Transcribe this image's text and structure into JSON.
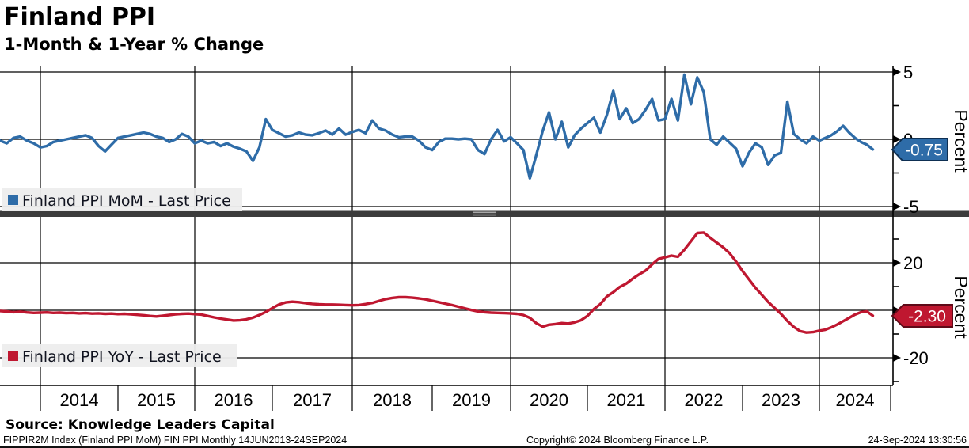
{
  "header": {
    "title": "Finland PPI",
    "subtitle": "1-Month & 1-Year % Change"
  },
  "panel_top": {
    "legend_label": "Finland PPI MoM - Last Price",
    "axis_title": "Percent",
    "last_price": "-0.75",
    "tick_labels": [
      "5",
      "0",
      "-5"
    ]
  },
  "panel_bottom": {
    "legend_label": "Finland PPI YoY - Last Price",
    "axis_title": "Percent",
    "last_price": "-2.30",
    "tick_labels": [
      "20",
      "0",
      "-20"
    ]
  },
  "x_axis": {
    "year_labels": [
      "2014",
      "2015",
      "2016",
      "2017",
      "2018",
      "2019",
      "2020",
      "2021",
      "2022",
      "2023",
      "2024"
    ]
  },
  "footer": {
    "source": "Source: Knowledge Leaders Capital",
    "ticker_info": "FIPPIR2M Index (Finland PPI MoM) FIN PPI  Monthly 14JUN2013-24SEP2024",
    "copyright": "Copyright© 2024 Bloomberg Finance L.P.",
    "timestamp": "24-Sep-2024 13:30:56"
  },
  "colors": {
    "mom_blue": "#2e6ca8",
    "yoy_red": "#bf1730",
    "badge_blue_border": "#0e2f52",
    "badge_red_border": "#5f0a18",
    "grid": "#000000",
    "separator": "#3c3c3c",
    "separator_handle": "#a8a8a8",
    "legend_bg": "#ededed",
    "legend_text": "#10131f"
  },
  "chart_data": [
    {
      "type": "line",
      "name": "Finland PPI MoM - Last Price",
      "color": "#2e6ca8",
      "frequency": "monthly",
      "start": "2013-06",
      "end": "2024-09",
      "ylabel": "Percent",
      "yticks": [
        5,
        0,
        -5
      ],
      "ylim": [
        -5.5,
        5.5
      ],
      "last_price": -0.75,
      "values": [
        -0.1,
        -0.3,
        0.1,
        0.2,
        -0.1,
        -0.3,
        -0.6,
        -0.5,
        -0.2,
        -0.1,
        0.0,
        0.1,
        0.2,
        0.3,
        0.1,
        -0.5,
        -0.9,
        -0.4,
        0.1,
        0.2,
        0.3,
        0.4,
        0.5,
        0.4,
        0.2,
        0.1,
        -0.2,
        0.0,
        0.4,
        0.2,
        -0.3,
        -0.1,
        -0.3,
        -0.2,
        -0.5,
        -0.3,
        -0.55,
        -0.7,
        -0.9,
        -1.6,
        -0.6,
        1.5,
        0.7,
        0.45,
        0.2,
        0.3,
        0.5,
        0.35,
        0.3,
        0.45,
        0.65,
        0.35,
        0.8,
        0.35,
        0.55,
        0.7,
        0.45,
        1.4,
        0.8,
        0.65,
        0.35,
        0.15,
        0.2,
        0.2,
        -0.1,
        -0.6,
        -0.8,
        -0.2,
        0.05,
        0.05,
        0.0,
        0.05,
        0.0,
        -0.8,
        -1.1,
        0.0,
        0.7,
        -0.15,
        0.15,
        -0.3,
        -0.8,
        -2.9,
        -1.2,
        0.6,
        2.0,
        0.0,
        1.3,
        -0.6,
        0.3,
        0.8,
        1.2,
        1.6,
        0.5,
        1.8,
        3.6,
        1.5,
        2.3,
        1.2,
        1.5,
        2.2,
        3.0,
        1.4,
        1.5,
        3.0,
        1.4,
        4.8,
        2.6,
        4.6,
        3.5,
        0.0,
        -0.4,
        0.2,
        -0.25,
        -0.7,
        -2.0,
        -1.0,
        -0.3,
        -0.6,
        -1.9,
        -1.2,
        -1.0,
        2.8,
        0.4,
        0.0,
        -0.3,
        0.2,
        -0.1,
        0.1,
        0.3,
        0.6,
        1.0,
        0.5,
        0.1,
        -0.2,
        -0.4,
        -0.75
      ]
    },
    {
      "type": "line",
      "name": "Finland PPI YoY - Last Price",
      "color": "#bf1730",
      "frequency": "monthly",
      "start": "2013-06",
      "end": "2024-09",
      "ylabel": "Percent",
      "yticks": [
        20,
        0,
        -20
      ],
      "ylim": [
        -35,
        35
      ],
      "last_price": -2.3,
      "values": [
        -0.3,
        -0.5,
        -0.8,
        -0.6,
        -0.9,
        -1.1,
        -1.0,
        -0.9,
        -1.1,
        -1.0,
        -1.2,
        -1.1,
        -1.3,
        -1.2,
        -1.4,
        -1.3,
        -1.5,
        -1.4,
        -1.6,
        -1.5,
        -1.7,
        -1.9,
        -2.1,
        -2.4,
        -2.6,
        -2.3,
        -2.0,
        -1.7,
        -1.5,
        -1.4,
        -1.6,
        -1.8,
        -2.4,
        -3.0,
        -3.5,
        -3.9,
        -4.3,
        -4.2,
        -3.8,
        -3.1,
        -2.0,
        -0.7,
        0.9,
        2.4,
        3.3,
        3.6,
        3.4,
        3.0,
        2.7,
        2.5,
        2.4,
        2.4,
        2.3,
        2.2,
        2.1,
        2.2,
        2.6,
        3.1,
        3.9,
        4.7,
        5.2,
        5.5,
        5.5,
        5.3,
        5.0,
        4.6,
        4.0,
        3.4,
        2.8,
        2.2,
        1.5,
        0.8,
        0.1,
        -0.5,
        -0.8,
        -1.0,
        -1.1,
        -1.2,
        -1.3,
        -1.5,
        -2.0,
        -3.2,
        -5.4,
        -6.9,
        -6.1,
        -5.8,
        -5.4,
        -5.6,
        -5.1,
        -4.2,
        -2.4,
        0.5,
        2.6,
        5.8,
        7.6,
        9.8,
        11.2,
        13.3,
        15.1,
        16.7,
        19.3,
        21.6,
        22.3,
        23.0,
        22.5,
        25.5,
        29.0,
        32.5,
        32.7,
        30.5,
        28.5,
        26.5,
        24.0,
        20.5,
        16.5,
        13.0,
        9.5,
        6.5,
        3.5,
        1.0,
        -1.5,
        -4.5,
        -7.0,
        -8.8,
        -9.4,
        -9.2,
        -8.6,
        -8.2,
        -7.2,
        -6.0,
        -4.6,
        -3.2,
        -1.8,
        -0.8,
        -0.5,
        -2.3
      ]
    }
  ]
}
